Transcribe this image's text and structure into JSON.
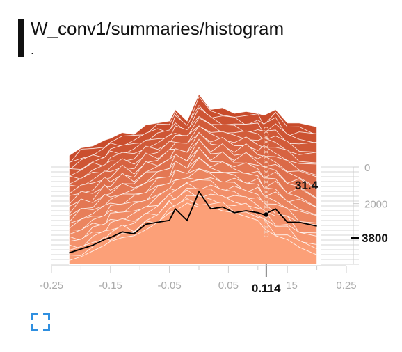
{
  "card": {
    "title": "W_conv1/summaries/histogram",
    "subtitle": "."
  },
  "chart_data": {
    "type": "area",
    "chart_kind": "histogram-offset",
    "xlim": [
      -0.25,
      0.25
    ],
    "x_ticks": [
      "-0.25",
      "-0.15",
      "-0.05",
      "0.05",
      "0.15",
      "0.25"
    ],
    "x_tick_values": [
      -0.25,
      -0.15,
      -0.05,
      0.05,
      0.15,
      0.25
    ],
    "y_ticks": [
      "0",
      "2000"
    ],
    "y_tick_values": [
      0,
      2000
    ],
    "step_range": [
      0,
      3800
    ],
    "hover": {
      "x_label": "0.114",
      "x_value": 0.114,
      "step_label": "3800",
      "step_value": 3800,
      "count_label": "31.4",
      "count_value": 31.4
    },
    "bins_x": [
      -0.22,
      -0.2,
      -0.18,
      -0.16,
      -0.15,
      -0.13,
      -0.11,
      -0.09,
      -0.07,
      -0.05,
      -0.04,
      -0.02,
      0.0,
      0.02,
      0.04,
      0.06,
      0.08,
      0.1,
      0.11,
      0.13,
      0.15,
      0.17,
      0.2
    ],
    "latest_step_counts": [
      6,
      10,
      11,
      14,
      15,
      18,
      17,
      22,
      23,
      24,
      30,
      24,
      38,
      30,
      31,
      28,
      29,
      28,
      27,
      30,
      23,
      23,
      21
    ],
    "first_step_counts": [
      2,
      4,
      7,
      10,
      12,
      14,
      15,
      18,
      22,
      27,
      28,
      32,
      30,
      30,
      28,
      27,
      25,
      23,
      19,
      15,
      13,
      9,
      5
    ],
    "colors": {
      "oldest_step": "#fca078",
      "newest_step": "#c84b2b",
      "highlight_line": "#000000",
      "axis_text": "#aaaaaa",
      "fullscreen_icon": "#2f8fe0"
    }
  },
  "controls": {
    "fullscreen_icon": "fullscreen-icon"
  }
}
